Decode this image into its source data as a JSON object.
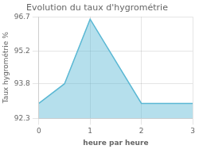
{
  "chart_data": {
    "type": "area",
    "title": "Evolution du taux d'hygrométrie",
    "xlabel": "heure par heure",
    "ylabel": "Taux hygrométrie %",
    "x": [
      0,
      0.5,
      1,
      2,
      2.05,
      3
    ],
    "values": [
      92.95,
      93.8,
      96.6,
      92.95,
      92.95,
      92.95
    ],
    "color": "#5bb8d4",
    "xlim": [
      0,
      3
    ],
    "ylim": [
      92.3,
      96.7
    ],
    "xticks": [
      0,
      1,
      2,
      3
    ],
    "yticks": [
      92.3,
      93.8,
      95.2,
      96.7
    ],
    "grid": true
  }
}
